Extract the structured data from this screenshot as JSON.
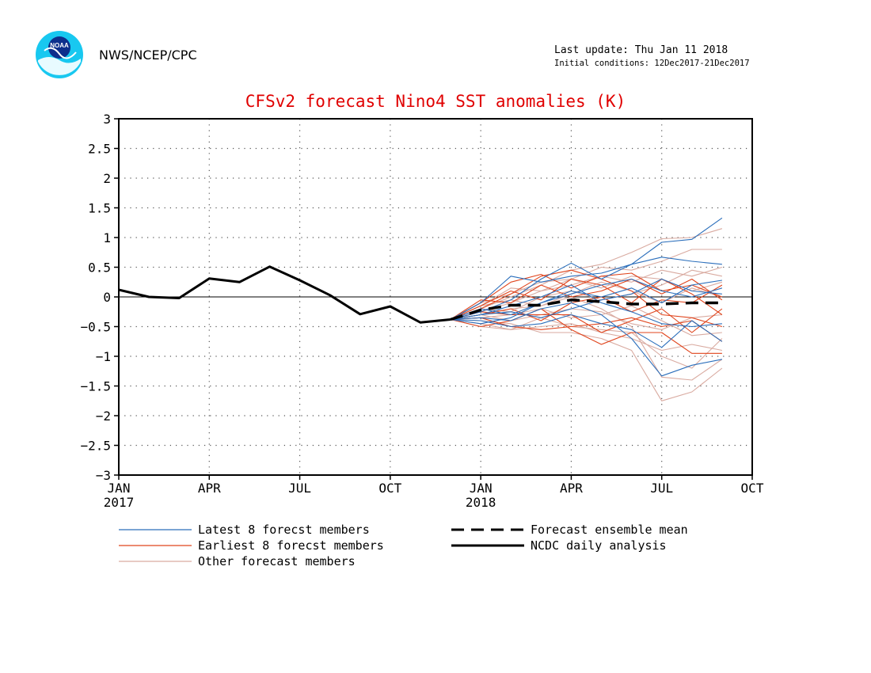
{
  "header": {
    "logo_text": "NOAA",
    "agency": "NWS/NCEP/CPC",
    "last_update": "Last update: Thu Jan 11 2018",
    "initial_conditions": "Initial conditions: 12Dec2017-21Dec2017"
  },
  "chart_data": {
    "type": "line",
    "title": "CFSv2 forecast Nino4 SST anomalies (K)",
    "xlabel": "",
    "ylabel": "",
    "ylim": [
      -3,
      3
    ],
    "yticks": [
      -3,
      -2.5,
      -2,
      -1.5,
      -1,
      -0.5,
      0,
      0.5,
      1,
      1.5,
      2,
      2.5,
      3
    ],
    "ytick_labels": [
      "−3",
      "−2.5",
      "−2",
      "−1.5",
      "−1",
      "−0.5",
      "0",
      "0.5",
      "1",
      "1.5",
      "2",
      "2.5",
      "3"
    ],
    "xlim": [
      "2017-01",
      "2018-10"
    ],
    "xticks": [
      {
        "x": "2017-01",
        "label": "JAN",
        "year": "2017"
      },
      {
        "x": "2017-04",
        "label": "APR",
        "year": ""
      },
      {
        "x": "2017-07",
        "label": "JUL",
        "year": ""
      },
      {
        "x": "2017-10",
        "label": "OCT",
        "year": ""
      },
      {
        "x": "2018-01",
        "label": "JAN",
        "year": "2018"
      },
      {
        "x": "2018-04",
        "label": "APR",
        "year": ""
      },
      {
        "x": "2018-07",
        "label": "JUL",
        "year": ""
      },
      {
        "x": "2018-10",
        "label": "OCT",
        "year": ""
      }
    ],
    "grid": true,
    "zero_line": true,
    "colors": {
      "latest": "#2a6ebb",
      "earliest": "#e0441c",
      "other": "#d9aaa0",
      "mean": "#000000",
      "analysis": "#000000",
      "title": "#e00000"
    },
    "forecast_x": [
      "2017-12",
      "2018-01",
      "2018-02",
      "2018-03",
      "2018-04",
      "2018-05",
      "2018-06",
      "2018-07",
      "2018-08",
      "2018-09"
    ],
    "legend": [
      {
        "label": "Latest 8 forecst members",
        "style": "latest"
      },
      {
        "label": "Earliest 8 forecst members",
        "style": "earliest"
      },
      {
        "label": "Other forecast members",
        "style": "other"
      },
      {
        "label": "Forecast ensemble mean",
        "style": "mean"
      },
      {
        "label": "NCDC daily analysis",
        "style": "analysis"
      }
    ],
    "series": [
      {
        "name": "NCDC daily analysis",
        "style": "analysis",
        "x": [
          "2017-01",
          "2017-02",
          "2017-03",
          "2017-04",
          "2017-05",
          "2017-06",
          "2017-07",
          "2017-08",
          "2017-09",
          "2017-10",
          "2017-11",
          "2017-12"
        ],
        "values": [
          0.12,
          0.0,
          -0.02,
          0.31,
          0.25,
          0.51,
          0.28,
          0.03,
          -0.29,
          -0.16,
          -0.43,
          -0.38
        ]
      },
      {
        "name": "Forecast ensemble mean",
        "style": "mean",
        "x": [
          "2017-12",
          "2018-01",
          "2018-02",
          "2018-03",
          "2018-04",
          "2018-05",
          "2018-06",
          "2018-07",
          "2018-08",
          "2018-09"
        ],
        "values": [
          -0.38,
          -0.22,
          -0.14,
          -0.14,
          -0.05,
          -0.08,
          -0.12,
          -0.12,
          -0.1,
          -0.1
        ]
      },
      {
        "style": "latest",
        "values": [
          -0.38,
          -0.25,
          -0.05,
          0.3,
          0.57,
          0.3,
          0.55,
          0.92,
          0.97,
          1.33
        ]
      },
      {
        "style": "latest",
        "values": [
          -0.38,
          -0.35,
          -0.4,
          -0.2,
          -0.1,
          -0.3,
          -0.7,
          -1.33,
          -1.15,
          -1.05
        ]
      },
      {
        "style": "latest",
        "values": [
          -0.38,
          -0.1,
          0.35,
          0.25,
          0.35,
          0.4,
          0.55,
          0.67,
          0.6,
          0.55
        ]
      },
      {
        "style": "latest",
        "values": [
          -0.38,
          -0.4,
          -0.5,
          -0.45,
          -0.3,
          -0.45,
          -0.55,
          -0.85,
          -0.4,
          -0.75
        ]
      },
      {
        "style": "latest",
        "values": [
          -0.38,
          -0.2,
          -0.3,
          -0.1,
          0.1,
          0.0,
          0.15,
          -0.1,
          0.2,
          0.28
        ]
      },
      {
        "style": "latest",
        "values": [
          -0.38,
          -0.3,
          -0.15,
          0.0,
          0.2,
          -0.1,
          -0.25,
          -0.45,
          -0.5,
          -0.45
        ]
      },
      {
        "style": "latest",
        "values": [
          -0.38,
          -0.3,
          -0.25,
          -0.35,
          -0.2,
          -0.05,
          0.05,
          0.3,
          0.1,
          0.05
        ]
      },
      {
        "style": "latest",
        "values": [
          -0.38,
          -0.45,
          -0.35,
          -0.1,
          0.05,
          0.2,
          0.3,
          0.1,
          0.0,
          0.15
        ]
      },
      {
        "style": "earliest",
        "values": [
          -0.38,
          -0.1,
          0.25,
          0.38,
          0.15,
          0.35,
          0.4,
          0.1,
          0.2,
          0.0
        ]
      },
      {
        "style": "earliest",
        "values": [
          -0.38,
          -0.5,
          -0.4,
          -0.2,
          -0.55,
          -0.8,
          -0.6,
          -0.6,
          -0.95,
          -0.95
        ]
      },
      {
        "style": "earliest",
        "values": [
          -0.38,
          -0.15,
          0.1,
          -0.05,
          0.3,
          0.2,
          -0.1,
          0.3,
          0.05,
          -0.3
        ]
      },
      {
        "style": "earliest",
        "values": [
          -0.38,
          -0.25,
          -0.3,
          -0.3,
          -0.3,
          -0.6,
          -0.4,
          -0.2,
          -0.6,
          -0.2
        ]
      },
      {
        "style": "earliest",
        "values": [
          -0.38,
          -0.2,
          0.05,
          0.35,
          0.45,
          0.3,
          0.1,
          -0.3,
          -0.35,
          -0.5
        ]
      },
      {
        "style": "earliest",
        "values": [
          -0.38,
          -0.3,
          -0.2,
          -0.4,
          -0.1,
          0.0,
          -0.25,
          -0.05,
          -0.1,
          0.2
        ]
      },
      {
        "style": "earliest",
        "values": [
          -0.38,
          -0.05,
          -0.1,
          0.2,
          0.0,
          0.1,
          0.3,
          0.05,
          0.3,
          -0.05
        ]
      },
      {
        "style": "earliest",
        "values": [
          -0.38,
          -0.35,
          -0.5,
          -0.55,
          -0.5,
          -0.45,
          -0.35,
          -0.5,
          -0.4,
          -0.75
        ]
      },
      {
        "style": "other",
        "values": [
          -0.38,
          -0.2,
          0.0,
          0.2,
          0.45,
          0.55,
          0.75,
          0.98,
          1.0,
          1.15
        ]
      },
      {
        "style": "other",
        "values": [
          -0.38,
          -0.4,
          -0.45,
          -0.6,
          -0.6,
          -0.7,
          -0.9,
          -1.75,
          -1.6,
          -1.2
        ]
      },
      {
        "style": "other",
        "values": [
          -0.38,
          -0.3,
          -0.2,
          -0.15,
          0.0,
          -0.2,
          -0.5,
          -1.35,
          -1.4,
          -1.05
        ]
      },
      {
        "style": "other",
        "values": [
          -0.38,
          -0.25,
          -0.1,
          0.1,
          0.3,
          0.5,
          0.45,
          0.6,
          0.8,
          0.8
        ]
      },
      {
        "style": "other",
        "values": [
          -0.38,
          -0.45,
          -0.55,
          -0.5,
          -0.45,
          -0.6,
          -0.7,
          -0.9,
          -0.8,
          -0.9
        ]
      },
      {
        "style": "other",
        "values": [
          -0.38,
          -0.15,
          0.15,
          0.1,
          0.2,
          0.35,
          0.25,
          0.45,
          0.35,
          0.5
        ]
      },
      {
        "style": "other",
        "values": [
          -0.38,
          -0.35,
          -0.3,
          -0.2,
          -0.35,
          -0.3,
          -0.15,
          -0.4,
          -0.65,
          -0.6
        ]
      },
      {
        "style": "other",
        "values": [
          -0.38,
          -0.2,
          -0.25,
          0.0,
          0.1,
          -0.05,
          0.05,
          0.2,
          0.45,
          0.35
        ]
      },
      {
        "style": "other",
        "values": [
          -0.38,
          -0.1,
          0.05,
          0.25,
          0.3,
          0.15,
          0.35,
          0.3,
          0.1,
          0.25
        ]
      },
      {
        "style": "other",
        "values": [
          -0.38,
          -0.5,
          -0.55,
          -0.35,
          -0.5,
          -0.55,
          -0.6,
          -1.0,
          -1.2,
          -0.7
        ]
      },
      {
        "style": "other",
        "values": [
          -0.38,
          -0.3,
          -0.4,
          -0.3,
          -0.2,
          -0.25,
          -0.45,
          -0.55,
          -0.35,
          -0.3
        ]
      },
      {
        "style": "other",
        "values": [
          -0.38,
          -0.15,
          -0.05,
          -0.15,
          0.05,
          0.25,
          0.1,
          -0.1,
          0.15,
          0.0
        ]
      }
    ]
  }
}
